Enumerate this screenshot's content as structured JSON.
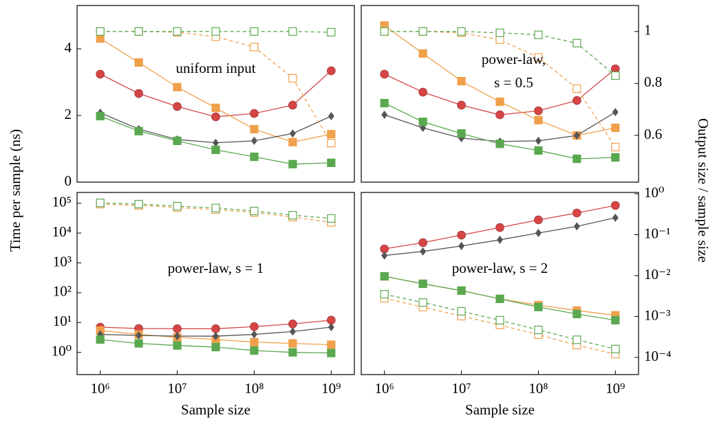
{
  "y_label": "Time per sample (ns)",
  "y2_label": "Output size / sample size",
  "chart_data": [
    {
      "type": "line",
      "annotation": [
        "uniform input"
      ],
      "xlog": true,
      "xlim": [
        500000,
        2000000000
      ],
      "ylim": [
        0,
        5.3
      ],
      "yticks": [
        0,
        2,
        4
      ],
      "y2lim": [
        0.42,
        1.1
      ],
      "x": [
        1000000,
        3162278,
        10000000,
        31622777,
        100000000,
        316227766,
        1000000000
      ],
      "series": [
        {
          "color": "#d64545",
          "marker": "circle",
          "values": [
            3.24,
            2.66,
            2.27,
            1.96,
            2.06,
            2.31,
            3.34
          ]
        },
        {
          "color": "#f0a04b",
          "marker": "square",
          "values": [
            4.31,
            3.59,
            2.85,
            2.23,
            1.59,
            1.2,
            1.44
          ]
        },
        {
          "color": "#555555",
          "marker": "diamond",
          "values": [
            2.08,
            1.59,
            1.28,
            1.18,
            1.24,
            1.46,
            1.98
          ]
        },
        {
          "color": "#5aa84f",
          "marker": "square",
          "values": [
            1.98,
            1.53,
            1.24,
            0.97,
            0.76,
            0.54,
            0.58
          ]
        },
        {
          "color": "#f0a04b",
          "marker": "square-open",
          "dash": true,
          "axis": "y2",
          "values": [
            1,
            1,
            0.997,
            0.98,
            0.94,
            0.82,
            0.57
          ]
        },
        {
          "color": "#5aa84f",
          "marker": "square-open",
          "dash": true,
          "axis": "y2",
          "values": [
            1,
            1,
            1,
            1,
            1,
            1,
            0.997
          ]
        }
      ]
    },
    {
      "type": "line",
      "annotation": [
        "power-law,",
        "s = 0.5"
      ],
      "xlog": true,
      "xlim": [
        500000,
        2000000000
      ],
      "ylim": [
        0,
        5.3
      ],
      "y2lim": [
        0.42,
        1.1
      ],
      "y2ticks": [
        0.6,
        0.8,
        1
      ],
      "x": [
        1000000,
        3162278,
        10000000,
        31622777,
        100000000,
        316227766,
        1000000000
      ],
      "series": [
        {
          "color": "#d64545",
          "marker": "circle",
          "values": [
            3.24,
            2.7,
            2.31,
            2.02,
            2.14,
            2.45,
            3.4
          ]
        },
        {
          "color": "#f0a04b",
          "marker": "square",
          "values": [
            4.7,
            3.86,
            3.03,
            2.41,
            1.86,
            1.4,
            1.63
          ]
        },
        {
          "color": "#555555",
          "marker": "diamond",
          "values": [
            2.02,
            1.63,
            1.32,
            1.22,
            1.24,
            1.4,
            2.1
          ]
        },
        {
          "color": "#5aa84f",
          "marker": "square",
          "values": [
            2.37,
            1.81,
            1.46,
            1.15,
            0.95,
            0.7,
            0.74
          ]
        },
        {
          "color": "#f0a04b",
          "marker": "square-open",
          "dash": true,
          "axis": "y2",
          "values": [
            1,
            1,
            0.995,
            0.968,
            0.9,
            0.78,
            0.555
          ]
        },
        {
          "color": "#5aa84f",
          "marker": "square-open",
          "dash": true,
          "axis": "y2",
          "values": [
            1,
            1,
            1,
            0.995,
            0.987,
            0.955,
            0.83
          ]
        }
      ]
    },
    {
      "type": "line",
      "annotation": [
        "power-law, s = 1"
      ],
      "x_label": "Sample size",
      "xlog": true,
      "ylog": true,
      "y2log": true,
      "xlim": [
        500000,
        2000000000
      ],
      "xticks": [
        {
          "value": 1000000,
          "label": "10⁶"
        },
        {
          "value": 10000000,
          "label": "10⁷"
        },
        {
          "value": 100000000,
          "label": "10⁸"
        },
        {
          "value": 1000000000,
          "label": "10⁹"
        }
      ],
      "ylim": [
        0.18,
        230000
      ],
      "yticks": [
        {
          "value": 1,
          "label": "10⁰"
        },
        {
          "value": 10,
          "label": "10¹"
        },
        {
          "value": 100,
          "label": "10²"
        },
        {
          "value": 1000,
          "label": "10³"
        },
        {
          "value": 10000,
          "label": "10⁴"
        },
        {
          "value": 100000,
          "label": "10⁵"
        }
      ],
      "y2lim": [
        3.8e-05,
        1.08
      ],
      "x": [
        1000000,
        3162278,
        10000000,
        31622777,
        100000000,
        316227766,
        1000000000
      ],
      "series": [
        {
          "color": "#d64545",
          "marker": "circle",
          "values": [
            7,
            6.3,
            6.2,
            6.2,
            7.3,
            9,
            12
          ]
        },
        {
          "color": "#f0a04b",
          "marker": "square",
          "values": [
            5.4,
            4,
            3.2,
            2.7,
            2.2,
            2,
            1.8
          ]
        },
        {
          "color": "#555555",
          "marker": "diamond",
          "values": [
            4,
            3.7,
            3.5,
            3.5,
            4,
            5,
            7
          ]
        },
        {
          "color": "#5aa84f",
          "marker": "square",
          "values": [
            2.7,
            2,
            1.7,
            1.5,
            1.15,
            1,
            0.95
          ]
        },
        {
          "color": "#f0a04b",
          "marker": "square-open",
          "dash": true,
          "axis": "y2",
          "values": [
            0.56,
            0.52,
            0.46,
            0.41,
            0.35,
            0.27,
            0.2
          ]
        },
        {
          "color": "#5aa84f",
          "marker": "square-open",
          "dash": true,
          "axis": "y2",
          "values": [
            0.6,
            0.56,
            0.5,
            0.45,
            0.38,
            0.3,
            0.25
          ]
        }
      ]
    },
    {
      "type": "line",
      "annotation": [
        "power-law, s = 2"
      ],
      "x_label": "Sample size",
      "xlog": true,
      "y2log": true,
      "xlim": [
        500000,
        2000000000
      ],
      "xticks": [
        {
          "value": 1000000,
          "label": "10⁶"
        },
        {
          "value": 10000000,
          "label": "10⁷"
        },
        {
          "value": 100000000,
          "label": "10⁸"
        },
        {
          "value": 1000000000,
          "label": "10⁹"
        }
      ],
      "y2lim": [
        3.8e-05,
        1.08
      ],
      "y2ticks": [
        {
          "value": 1,
          "label": "10⁰"
        },
        {
          "value": 0.1,
          "label": "10⁻¹"
        },
        {
          "value": 0.01,
          "label": "10⁻²"
        },
        {
          "value": 0.001,
          "label": "10⁻³"
        },
        {
          "value": 0.0001,
          "label": "10⁻⁴"
        }
      ],
      "x": [
        1000000,
        3162278,
        10000000,
        31622777,
        100000000,
        316227766,
        1000000000
      ],
      "series": [
        {
          "color": "#d64545",
          "marker": "circle",
          "axis": "y2",
          "values": [
            0.045,
            0.064,
            0.098,
            0.15,
            0.23,
            0.34,
            0.52
          ]
        },
        {
          "color": "#f0a04b",
          "marker": "square",
          "axis": "y2",
          "values": [
            0.0096,
            0.0063,
            0.0043,
            0.0027,
            0.0019,
            0.0014,
            0.00107
          ]
        },
        {
          "color": "#555555",
          "marker": "diamond",
          "axis": "y2",
          "values": [
            0.031,
            0.039,
            0.053,
            0.075,
            0.11,
            0.16,
            0.26
          ]
        },
        {
          "color": "#5aa84f",
          "marker": "square",
          "axis": "y2",
          "values": [
            0.0096,
            0.0063,
            0.0043,
            0.0027,
            0.0017,
            0.00115,
            0.00081
          ]
        },
        {
          "color": "#f0a04b",
          "marker": "square-open",
          "dash": true,
          "axis": "y2",
          "values": [
            0.0028,
            0.0017,
            0.00102,
            0.00062,
            0.00036,
            0.0002,
            0.00012
          ]
        },
        {
          "color": "#5aa84f",
          "marker": "square-open",
          "dash": true,
          "axis": "y2",
          "values": [
            0.0035,
            0.0022,
            0.00134,
            0.00081,
            0.00047,
            0.00027,
            0.00016
          ]
        }
      ]
    }
  ]
}
